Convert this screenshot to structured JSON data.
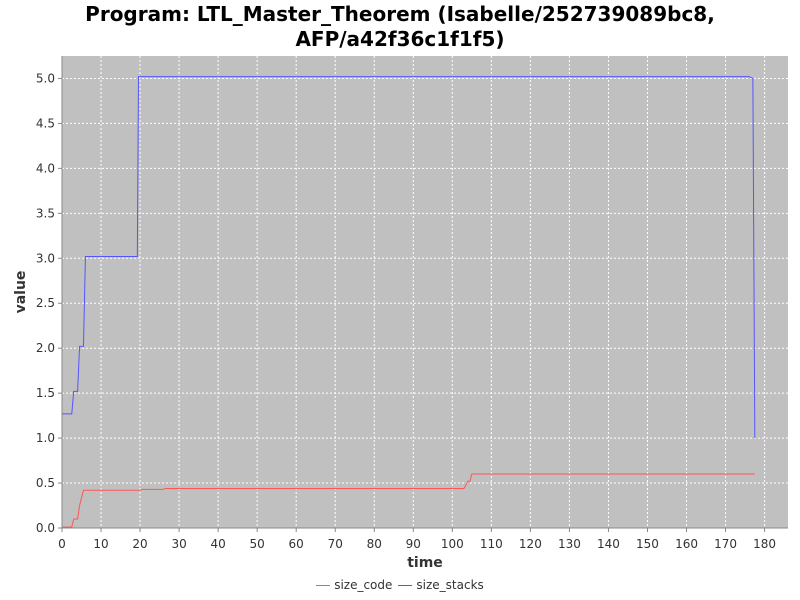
{
  "title_line1": "Program: LTL_Master_Theorem (Isabelle/252739089bc8,",
  "title_line2": "AFP/a42f36c1f1f5)",
  "chart_data": {
    "type": "line",
    "title": "Program: LTL_Master_Theorem (Isabelle/252739089bc8, AFP/a42f36c1f1f5)",
    "xlabel": "time",
    "ylabel": "value",
    "xlim": [
      0,
      186
    ],
    "ylim": [
      0,
      5.25
    ],
    "xticks": [
      0,
      10,
      20,
      30,
      40,
      50,
      60,
      70,
      80,
      90,
      100,
      110,
      120,
      130,
      140,
      150,
      160,
      170,
      180
    ],
    "yticks": [
      "0.0",
      "0.5",
      "1.0",
      "1.5",
      "2.0",
      "2.5",
      "3.0",
      "3.5",
      "4.0",
      "4.5",
      "5.0"
    ],
    "grid": true,
    "plot_background": "#c0c0c0",
    "legend_position": "bottom-center",
    "series": [
      {
        "name": "size_code",
        "color": "#ff5555",
        "points": [
          [
            0,
            0.01
          ],
          [
            2.5,
            0.01
          ],
          [
            3,
            0.1
          ],
          [
            4,
            0.1
          ],
          [
            4.5,
            0.25
          ],
          [
            5.5,
            0.42
          ],
          [
            20,
            0.42
          ],
          [
            20.5,
            0.43
          ],
          [
            26,
            0.43
          ],
          [
            26.5,
            0.44
          ],
          [
            103,
            0.44
          ],
          [
            104,
            0.52
          ],
          [
            104.5,
            0.52
          ],
          [
            105,
            0.6
          ],
          [
            177.5,
            0.6
          ]
        ]
      },
      {
        "name": "size_stacks",
        "color": "#5555ff",
        "points": [
          [
            0,
            1.27
          ],
          [
            2.5,
            1.27
          ],
          [
            3,
            1.52
          ],
          [
            4,
            1.52
          ],
          [
            4.5,
            2.02
          ],
          [
            5.5,
            2.02
          ],
          [
            6,
            3.02
          ],
          [
            19.3,
            3.02
          ],
          [
            19.6,
            5.02
          ],
          [
            176,
            5.02
          ],
          [
            177,
            5.0
          ],
          [
            177.5,
            1.0
          ]
        ]
      }
    ]
  }
}
